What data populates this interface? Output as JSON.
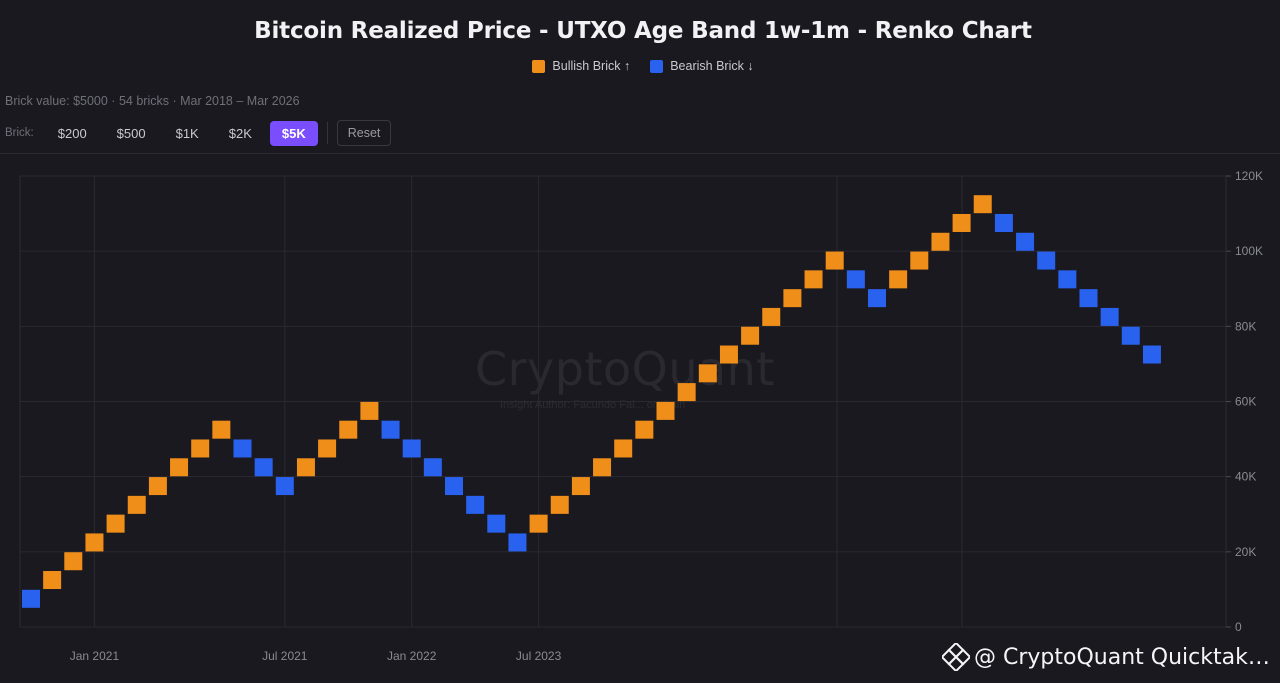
{
  "title": "Bitcoin Realized Price - UTXO Age Band 1w-1m - Renko Chart",
  "legend": {
    "bullish": "Bullish Brick ↑",
    "bearish": "Bearish Brick ↓"
  },
  "info": "Brick value: $5000 · 54 bricks · Mar 2018 – Mar 2026",
  "controls": {
    "label": "Brick:",
    "options": [
      "$200",
      "$500",
      "$1K",
      "$2K",
      "$5K"
    ],
    "active": "$5K",
    "reset": "Reset"
  },
  "watermark": {
    "brand": "CryptoQuant",
    "author": "Insight Author: Facundo Fal... onchain"
  },
  "footer": "@ CryptoQuant Quicktak…",
  "colors": {
    "bullish": "#f08e1a",
    "bearish": "#2a62f0",
    "active_button": "#7a4dff",
    "background": "#1a191f"
  },
  "chart_data": {
    "type": "renko",
    "brick_value": 5000,
    "ylim": [
      0,
      120000
    ],
    "y_ticks": [
      "0",
      "20K",
      "40K",
      "60K",
      "80K",
      "100K",
      "120K"
    ],
    "x_ticks": [
      {
        "label": "Jan 2021",
        "brick_index": 3
      },
      {
        "label": "Jul 2021",
        "brick_index": 12
      },
      {
        "label": "Jan 2022",
        "brick_index": 18
      },
      {
        "label": "Jul 2023",
        "brick_index": 24
      }
    ],
    "bricks": [
      {
        "dir": "down",
        "low": 5000,
        "high": 10000
      },
      {
        "dir": "up",
        "low": 10000,
        "high": 15000
      },
      {
        "dir": "up",
        "low": 15000,
        "high": 20000
      },
      {
        "dir": "up",
        "low": 20000,
        "high": 25000
      },
      {
        "dir": "up",
        "low": 25000,
        "high": 30000
      },
      {
        "dir": "up",
        "low": 30000,
        "high": 35000
      },
      {
        "dir": "up",
        "low": 35000,
        "high": 40000
      },
      {
        "dir": "up",
        "low": 40000,
        "high": 45000
      },
      {
        "dir": "up",
        "low": 45000,
        "high": 50000
      },
      {
        "dir": "up",
        "low": 50000,
        "high": 55000
      },
      {
        "dir": "down",
        "low": 45000,
        "high": 50000
      },
      {
        "dir": "down",
        "low": 40000,
        "high": 45000
      },
      {
        "dir": "down",
        "low": 35000,
        "high": 40000
      },
      {
        "dir": "up",
        "low": 40000,
        "high": 45000
      },
      {
        "dir": "up",
        "low": 45000,
        "high": 50000
      },
      {
        "dir": "up",
        "low": 50000,
        "high": 55000
      },
      {
        "dir": "up",
        "low": 55000,
        "high": 60000
      },
      {
        "dir": "down",
        "low": 50000,
        "high": 55000
      },
      {
        "dir": "down",
        "low": 45000,
        "high": 50000
      },
      {
        "dir": "down",
        "low": 40000,
        "high": 45000
      },
      {
        "dir": "down",
        "low": 35000,
        "high": 40000
      },
      {
        "dir": "down",
        "low": 30000,
        "high": 35000
      },
      {
        "dir": "down",
        "low": 25000,
        "high": 30000
      },
      {
        "dir": "down",
        "low": 20000,
        "high": 25000
      },
      {
        "dir": "up",
        "low": 25000,
        "high": 30000
      },
      {
        "dir": "up",
        "low": 30000,
        "high": 35000
      },
      {
        "dir": "up",
        "low": 35000,
        "high": 40000
      },
      {
        "dir": "up",
        "low": 40000,
        "high": 45000
      },
      {
        "dir": "up",
        "low": 45000,
        "high": 50000
      },
      {
        "dir": "up",
        "low": 50000,
        "high": 55000
      },
      {
        "dir": "up",
        "low": 55000,
        "high": 60000
      },
      {
        "dir": "up",
        "low": 60000,
        "high": 65000
      },
      {
        "dir": "up",
        "low": 65000,
        "high": 70000
      },
      {
        "dir": "up",
        "low": 70000,
        "high": 75000
      },
      {
        "dir": "up",
        "low": 75000,
        "high": 80000
      },
      {
        "dir": "up",
        "low": 80000,
        "high": 85000
      },
      {
        "dir": "up",
        "low": 85000,
        "high": 90000
      },
      {
        "dir": "up",
        "low": 90000,
        "high": 95000
      },
      {
        "dir": "up",
        "low": 95000,
        "high": 100000
      },
      {
        "dir": "down",
        "low": 90000,
        "high": 95000
      },
      {
        "dir": "down",
        "low": 85000,
        "high": 90000
      },
      {
        "dir": "up",
        "low": 90000,
        "high": 95000
      },
      {
        "dir": "up",
        "low": 95000,
        "high": 100000
      },
      {
        "dir": "up",
        "low": 100000,
        "high": 105000
      },
      {
        "dir": "up",
        "low": 105000,
        "high": 110000
      },
      {
        "dir": "up",
        "low": 110000,
        "high": 115000
      },
      {
        "dir": "down",
        "low": 105000,
        "high": 110000
      },
      {
        "dir": "down",
        "low": 100000,
        "high": 105000
      },
      {
        "dir": "down",
        "low": 95000,
        "high": 100000
      },
      {
        "dir": "down",
        "low": 90000,
        "high": 95000
      },
      {
        "dir": "down",
        "low": 85000,
        "high": 90000
      },
      {
        "dir": "down",
        "low": 80000,
        "high": 85000
      },
      {
        "dir": "down",
        "low": 75000,
        "high": 80000
      },
      {
        "dir": "down",
        "low": 70000,
        "high": 75000
      }
    ],
    "grid": true,
    "legend_position": "top-center"
  }
}
